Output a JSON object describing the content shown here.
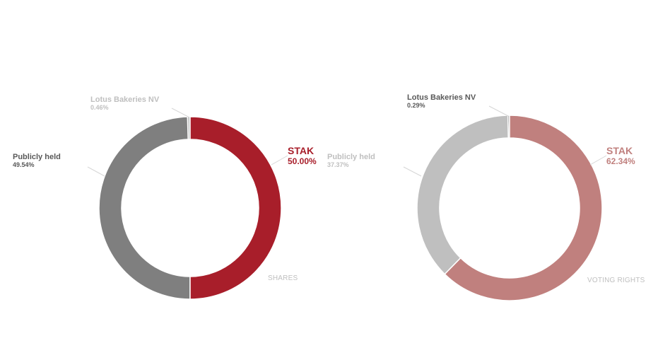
{
  "chart_data": [
    {
      "type": "pie",
      "title": "SHARES",
      "categories": [
        "STAK",
        "Publicly held",
        "Lotus Bakeries NV"
      ],
      "values": [
        50.0,
        49.54,
        0.46
      ],
      "labels": {
        "stak": {
          "name": "STAK",
          "pct": "50.00%"
        },
        "public": {
          "name": "Publicly held",
          "pct": "49.54%"
        },
        "lotus": {
          "name": "Lotus Bakeries NV",
          "pct": "0.46%"
        }
      },
      "colors": [
        "#a81e2a",
        "#7f7f7f",
        "#bfbfbf"
      ]
    },
    {
      "type": "pie",
      "title": "VOTING RIGHTS",
      "categories": [
        "STAK",
        "Publicly held",
        "Lotus Bakeries NV"
      ],
      "values": [
        62.34,
        37.37,
        0.29
      ],
      "labels": {
        "stak": {
          "name": "STAK",
          "pct": "62.34%"
        },
        "public": {
          "name": "Publicly held",
          "pct": "37.37%"
        },
        "lotus": {
          "name": "Lotus Bakeries NV",
          "pct": "0.29%"
        }
      },
      "colors": [
        "#c0807e",
        "#bfbfbf",
        "#7f7f7f"
      ]
    }
  ]
}
